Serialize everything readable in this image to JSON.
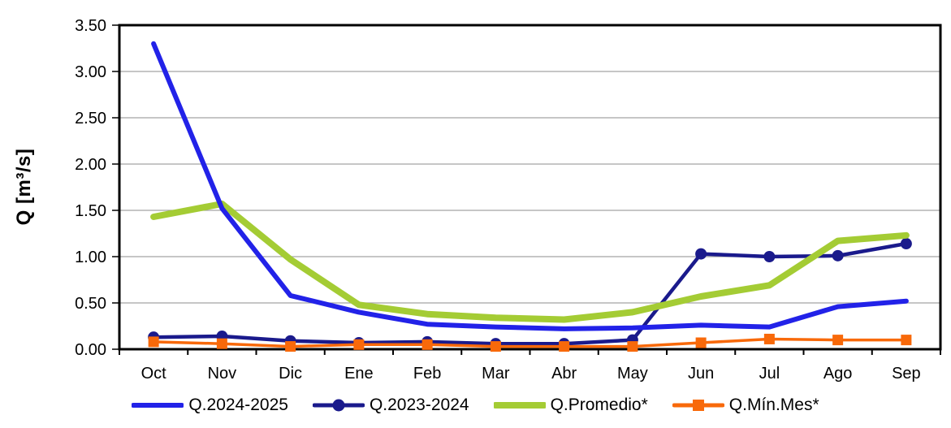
{
  "chart_data": {
    "type": "line",
    "title": "",
    "xlabel": "",
    "ylabel": "Q [m³/s]",
    "ylim": [
      0,
      3.5
    ],
    "ytick_step": 0.5,
    "yticks": [
      "0.00",
      "0.50",
      "1.00",
      "1.50",
      "2.00",
      "2.50",
      "3.00",
      "3.50"
    ],
    "categories": [
      "Oct",
      "Nov",
      "Dic",
      "Ene",
      "Feb",
      "Mar",
      "Abr",
      "May",
      "Jun",
      "Jul",
      "Ago",
      "Sep"
    ],
    "grid": "horizontal",
    "grid_color": "#a3a3a3",
    "axis_color": "#000000",
    "legend_position": "bottom",
    "series": [
      {
        "name": "Q.2024-2025",
        "color": "#2222e8",
        "marker": "none",
        "line_width": 6,
        "values": [
          3.3,
          1.52,
          0.58,
          0.4,
          0.27,
          0.24,
          0.22,
          0.23,
          0.26,
          0.24,
          0.46,
          0.52
        ]
      },
      {
        "name": "Q.2023-2024",
        "color": "#1a1a8c",
        "marker": "circle",
        "line_width": 4.5,
        "values": [
          0.13,
          0.14,
          0.09,
          0.07,
          0.08,
          0.06,
          0.06,
          0.1,
          1.03,
          1.0,
          1.01,
          1.14
        ]
      },
      {
        "name": "Q.Promedio*",
        "color": "#a4cc34",
        "marker": "none",
        "line_width": 8,
        "values": [
          1.43,
          1.57,
          0.97,
          0.48,
          0.38,
          0.34,
          0.32,
          0.4,
          0.57,
          0.69,
          1.17,
          1.23
        ]
      },
      {
        "name": "Q.Mín.Mes*",
        "color": "#f8690a",
        "marker": "square",
        "line_width": 3.5,
        "values": [
          0.08,
          0.06,
          0.03,
          0.05,
          0.05,
          0.03,
          0.03,
          0.03,
          0.07,
          0.11,
          0.1,
          0.1
        ]
      }
    ],
    "draw_order": [
      1,
      2,
      3,
      0
    ]
  }
}
